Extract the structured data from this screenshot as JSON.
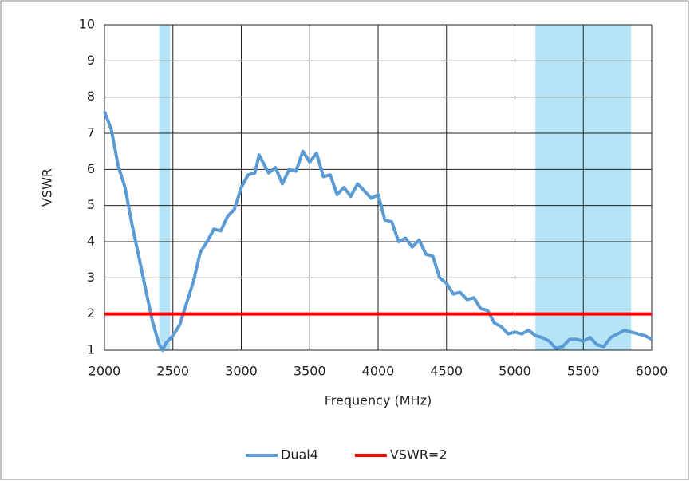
{
  "chart_data": {
    "type": "line",
    "xlabel": "Frequency (MHz)",
    "ylabel": "VSWR",
    "xlim": [
      2000,
      6000
    ],
    "xticks": [
      2000,
      2500,
      3000,
      3500,
      4000,
      4500,
      5000,
      5500,
      6000
    ],
    "ylim": [
      1,
      10
    ],
    "yticks": [
      1,
      2,
      3,
      4,
      5,
      6,
      7,
      8,
      9,
      10
    ],
    "grid": true,
    "legend": "bottom",
    "bands": [
      {
        "from": 2400,
        "to": 2480,
        "color": "#b4e4f6"
      },
      {
        "from": 5150,
        "to": 5850,
        "color": "#b4e4f6"
      }
    ],
    "series": [
      {
        "name": "Dual4",
        "color": "#5b9bd5",
        "x": [
          2000,
          2050,
          2100,
          2150,
          2200,
          2250,
          2300,
          2350,
          2400,
          2425,
          2450,
          2500,
          2550,
          2600,
          2650,
          2700,
          2750,
          2800,
          2850,
          2900,
          2950,
          3000,
          3050,
          3100,
          3130,
          3200,
          3250,
          3300,
          3350,
          3400,
          3450,
          3500,
          3550,
          3600,
          3650,
          3700,
          3750,
          3800,
          3850,
          3900,
          3950,
          4000,
          4050,
          4100,
          4150,
          4200,
          4250,
          4300,
          4350,
          4400,
          4450,
          4500,
          4550,
          4600,
          4650,
          4700,
          4750,
          4800,
          4850,
          4900,
          4950,
          5000,
          5050,
          5100,
          5150,
          5200,
          5250,
          5300,
          5350,
          5400,
          5450,
          5500,
          5550,
          5600,
          5650,
          5700,
          5750,
          5800,
          5850,
          5900,
          5950,
          6000
        ],
        "values": [
          7.6,
          7.1,
          6.1,
          5.5,
          4.5,
          3.6,
          2.7,
          1.8,
          1.15,
          1.0,
          1.2,
          1.4,
          1.7,
          2.3,
          2.9,
          3.7,
          4.0,
          4.35,
          4.3,
          4.7,
          4.9,
          5.5,
          5.85,
          5.9,
          6.4,
          5.9,
          6.05,
          5.6,
          6.0,
          5.95,
          6.5,
          6.2,
          6.45,
          5.8,
          5.85,
          5.3,
          5.5,
          5.25,
          5.6,
          5.4,
          5.2,
          5.3,
          4.6,
          4.55,
          4.0,
          4.1,
          3.85,
          4.05,
          3.65,
          3.6,
          3.0,
          2.85,
          2.55,
          2.6,
          2.4,
          2.45,
          2.15,
          2.1,
          1.75,
          1.65,
          1.45,
          1.5,
          1.45,
          1.55,
          1.4,
          1.35,
          1.25,
          1.05,
          1.1,
          1.3,
          1.3,
          1.25,
          1.35,
          1.15,
          1.1,
          1.35,
          1.45,
          1.55,
          1.5,
          1.45,
          1.4,
          1.3
        ]
      },
      {
        "name": "VSWR=2",
        "color": "#ff0000",
        "x": [
          2000,
          6000
        ],
        "values": [
          2,
          2
        ]
      }
    ]
  }
}
